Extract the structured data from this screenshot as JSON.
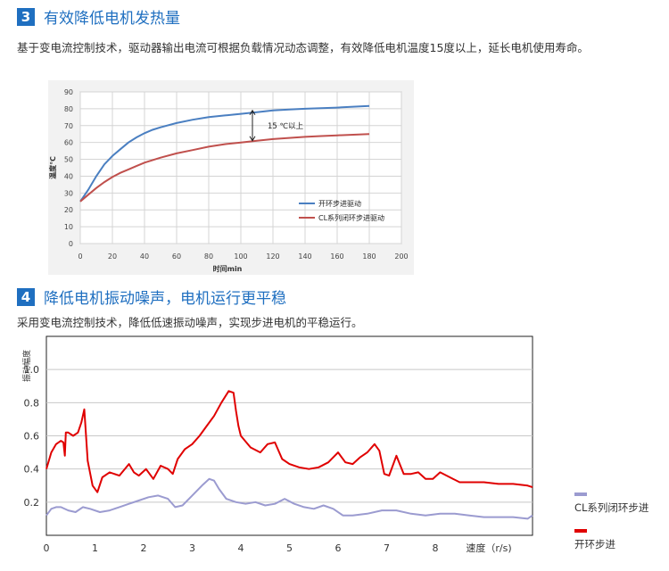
{
  "section3": {
    "number": "3",
    "title": "有效降低电机发热量",
    "description": "基于变电流控制技术，驱动器输出电流可根据负载情况动态调整，有效降低电机温度15度以上，延长电机使用寿命。"
  },
  "section4": {
    "number": "4",
    "title": "降低电机振动噪声，电机运行更平稳",
    "description": "采用变电流控制技术，降低低速振动噪声，实现步进电机的平稳运行。"
  },
  "chart_data": [
    {
      "type": "line",
      "title": "",
      "xlabel": "时间min",
      "ylabel": "温度℃",
      "xlim": [
        0,
        200
      ],
      "ylim": [
        0,
        90
      ],
      "x_ticks": [
        0,
        20,
        40,
        60,
        80,
        100,
        120,
        140,
        160,
        180,
        200
      ],
      "y_ticks": [
        0,
        10,
        20,
        30,
        40,
        50,
        60,
        70,
        80,
        90
      ],
      "grid": true,
      "legend_position": "bottom-right",
      "annotation": "15 ℃以上",
      "series": [
        {
          "name": "开环步进驱动",
          "color": "#4a7fc1",
          "x": [
            0,
            5,
            10,
            15,
            20,
            25,
            30,
            35,
            40,
            45,
            50,
            60,
            70,
            80,
            90,
            100,
            110,
            120,
            130,
            140,
            150,
            160,
            170,
            180
          ],
          "y": [
            25,
            32,
            40,
            47,
            52,
            56,
            60,
            63,
            65.5,
            67.5,
            69,
            71.5,
            73.5,
            75,
            76,
            77,
            78,
            79,
            79.5,
            80,
            80.3,
            80.7,
            81.2,
            81.7
          ]
        },
        {
          "name": "CL系列闭环步进驱动",
          "color": "#c0504d",
          "x": [
            0,
            5,
            10,
            15,
            20,
            25,
            30,
            35,
            40,
            50,
            60,
            70,
            80,
            90,
            100,
            110,
            120,
            130,
            140,
            150,
            160,
            170,
            180
          ],
          "y": [
            25,
            29,
            33,
            36.5,
            39.5,
            42,
            44,
            46,
            48,
            51,
            53.5,
            55.5,
            57.5,
            59,
            60,
            61,
            62,
            62.7,
            63.3,
            63.8,
            64.2,
            64.6,
            65
          ]
        }
      ]
    },
    {
      "type": "line",
      "title": "",
      "xlabel": "速度（r/s)",
      "ylabel": "振动幅度",
      "xlim": [
        0,
        10
      ],
      "ylim": [
        0,
        1.2
      ],
      "x_ticks": [
        0,
        1,
        2,
        3,
        4,
        5,
        6,
        7,
        8
      ],
      "y_ticks": [
        0.2,
        0.4,
        0.6,
        0.8,
        1.0
      ],
      "grid": true,
      "legend_position": "right",
      "series": [
        {
          "name": "CL系列闭环步进",
          "color": "#9b9bd0",
          "x": [
            0,
            0.1,
            0.2,
            0.3,
            0.45,
            0.6,
            0.75,
            0.9,
            1.1,
            1.3,
            1.5,
            1.7,
            1.9,
            2.1,
            2.3,
            2.5,
            2.65,
            2.8,
            3.0,
            3.2,
            3.35,
            3.45,
            3.55,
            3.7,
            3.9,
            4.1,
            4.3,
            4.5,
            4.7,
            4.9,
            5.1,
            5.3,
            5.5,
            5.7,
            5.9,
            6.1,
            6.3,
            6.6,
            6.9,
            7.2,
            7.5,
            7.8,
            8.1,
            8.4,
            8.7,
            9.0,
            9.3,
            9.6,
            9.9,
            10.0
          ],
          "y": [
            0.12,
            0.16,
            0.17,
            0.17,
            0.15,
            0.14,
            0.17,
            0.16,
            0.14,
            0.15,
            0.17,
            0.19,
            0.21,
            0.23,
            0.24,
            0.22,
            0.17,
            0.18,
            0.24,
            0.3,
            0.34,
            0.33,
            0.28,
            0.22,
            0.2,
            0.19,
            0.2,
            0.18,
            0.19,
            0.22,
            0.19,
            0.17,
            0.16,
            0.18,
            0.16,
            0.12,
            0.12,
            0.13,
            0.15,
            0.15,
            0.13,
            0.12,
            0.13,
            0.13,
            0.12,
            0.11,
            0.11,
            0.11,
            0.1,
            0.12
          ]
        },
        {
          "name": "开环步进",
          "color": "#e00000",
          "x": [
            0,
            0.1,
            0.2,
            0.3,
            0.35,
            0.38,
            0.4,
            0.45,
            0.55,
            0.65,
            0.72,
            0.78,
            0.85,
            0.95,
            1.05,
            1.15,
            1.3,
            1.5,
            1.7,
            1.8,
            1.9,
            2.05,
            2.2,
            2.35,
            2.5,
            2.6,
            2.7,
            2.85,
            3.0,
            3.15,
            3.3,
            3.45,
            3.6,
            3.75,
            3.85,
            3.9,
            3.95,
            4.0,
            4.2,
            4.4,
            4.55,
            4.7,
            4.85,
            5.0,
            5.2,
            5.4,
            5.6,
            5.8,
            6.0,
            6.15,
            6.3,
            6.45,
            6.6,
            6.75,
            6.85,
            6.95,
            7.05,
            7.2,
            7.35,
            7.5,
            7.65,
            7.8,
            7.95,
            8.1,
            8.3,
            8.5,
            8.7,
            9.0,
            9.3,
            9.6,
            9.9,
            10.0
          ],
          "y": [
            0.4,
            0.5,
            0.55,
            0.57,
            0.56,
            0.48,
            0.62,
            0.62,
            0.6,
            0.62,
            0.68,
            0.76,
            0.45,
            0.3,
            0.26,
            0.35,
            0.38,
            0.36,
            0.43,
            0.38,
            0.36,
            0.4,
            0.34,
            0.42,
            0.4,
            0.37,
            0.46,
            0.52,
            0.55,
            0.6,
            0.66,
            0.72,
            0.8,
            0.87,
            0.86,
            0.75,
            0.66,
            0.6,
            0.53,
            0.5,
            0.55,
            0.56,
            0.46,
            0.43,
            0.41,
            0.4,
            0.41,
            0.44,
            0.5,
            0.44,
            0.43,
            0.47,
            0.5,
            0.55,
            0.51,
            0.37,
            0.36,
            0.48,
            0.37,
            0.37,
            0.38,
            0.34,
            0.34,
            0.38,
            0.35,
            0.32,
            0.32,
            0.32,
            0.31,
            0.31,
            0.3,
            0.29
          ]
        }
      ]
    }
  ]
}
